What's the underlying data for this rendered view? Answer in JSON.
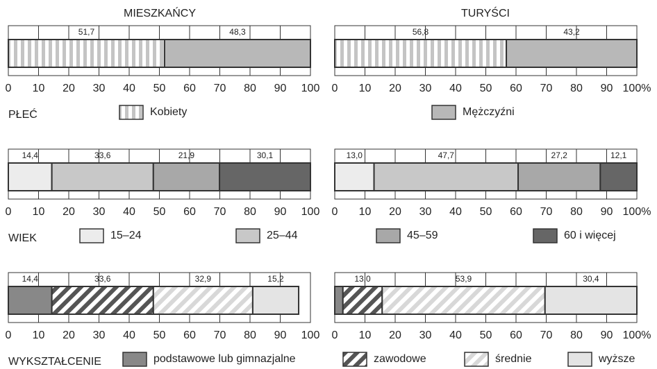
{
  "column_titles": [
    "MIESZKAŃCY",
    "TURYŚCI"
  ],
  "chart_data": [
    {
      "type": "stacked_bar",
      "title": "PŁEĆ",
      "categories": [
        "Kobiety",
        "Mężczyźni"
      ],
      "colors": [
        "#c4c4c4",
        "#b8b8b8"
      ],
      "patterns": [
        "vertical-stripes",
        null
      ],
      "xlim": [
        0,
        100
      ],
      "panels": [
        {
          "values": [
            51.7,
            48.3
          ],
          "value_labels": [
            "51,7",
            "48,3"
          ],
          "xticks": [
            0,
            10,
            20,
            30,
            40,
            50,
            60,
            70,
            80,
            90,
            100
          ]
        },
        {
          "values": [
            56.8,
            43.2
          ],
          "value_labels": [
            "56,8",
            "43,2"
          ],
          "xticks": [
            0,
            10,
            20,
            30,
            40,
            50,
            60,
            70,
            80,
            90,
            {
              "value": 100,
              "label": "100%"
            }
          ]
        }
      ]
    },
    {
      "type": "stacked_bar",
      "title": "WIEK",
      "categories": [
        "15–24",
        "25–44",
        "45–59",
        "60 i więcej"
      ],
      "colors": [
        "#ececec",
        "#c8c8c8",
        "#a8a8a8",
        "#666666"
      ],
      "patterns": [
        null,
        null,
        null,
        null
      ],
      "xlim": [
        0,
        100
      ],
      "panels": [
        {
          "values": [
            14.4,
            33.6,
            21.9,
            30.1
          ],
          "value_labels": [
            "14,4",
            "33,6",
            "21,9",
            "30,1"
          ],
          "xticks": [
            0,
            10,
            20,
            30,
            40,
            50,
            60,
            70,
            80,
            90,
            100
          ]
        },
        {
          "values": [
            13.0,
            47.7,
            27.2,
            12.1
          ],
          "value_labels": [
            "13,0",
            "47,7",
            "27,2",
            "12,1"
          ],
          "xticks": [
            0,
            10,
            20,
            30,
            40,
            50,
            60,
            70,
            80,
            90,
            {
              "value": 100,
              "label": "100%"
            }
          ]
        }
      ]
    },
    {
      "type": "stacked_bar",
      "title": "WYKSZTAŁCENIE",
      "categories": [
        "podstawowe lub gimnazjalne",
        "zawodowe",
        "średnie",
        "wyższe"
      ],
      "colors": [
        "#888888",
        "#555555",
        "#d8d8d8",
        "#e4e4e4"
      ],
      "patterns": [
        null,
        "diagonal-stripes",
        "diagonal-stripes",
        null
      ],
      "xlim": [
        0,
        100
      ],
      "panels": [
        {
          "values": [
            14.4,
            33.6,
            32.9,
            15.2
          ],
          "value_labels": [
            "14,4",
            "33,6",
            "32,9",
            "15,2"
          ],
          "xticks": [
            0,
            10,
            20,
            30,
            40,
            50,
            60,
            70,
            80,
            90,
            100
          ]
        },
        {
          "values": [
            2.7,
            13.0,
            53.9,
            30.4
          ],
          "value_labels": [
            null,
            "13,0",
            "53,9",
            "30,4"
          ],
          "xticks": [
            0,
            10,
            20,
            30,
            40,
            50,
            60,
            70,
            80,
            90,
            {
              "value": 100,
              "label": "100%"
            }
          ]
        }
      ]
    }
  ]
}
